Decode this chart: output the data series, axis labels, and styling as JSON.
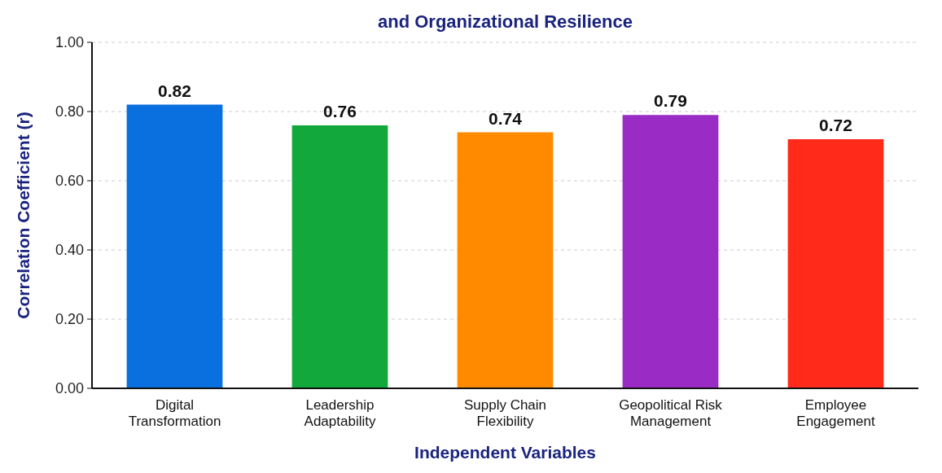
{
  "chart_data": {
    "type": "bar",
    "title": "and Organizational Resilience",
    "xlabel": "Independent Variables",
    "ylabel": "Correlation Coefficient (r)",
    "categories": [
      "Digital\nTransformation",
      "Leadership\nAdaptability",
      "Supply Chain\nFlexibility",
      "Geopolitical Risk\nManagement",
      "Employee\nEngagement"
    ],
    "values": [
      0.82,
      0.76,
      0.74,
      0.79,
      0.72
    ],
    "colors": [
      "#0a6fdf",
      "#12a83c",
      "#ff8a00",
      "#9a2bc4",
      "#ff2a1a"
    ],
    "data_labels": true,
    "ylim": [
      0,
      1
    ],
    "yticks": [
      {
        "value": 0,
        "label": "0.00"
      },
      {
        "value": 0.2,
        "label": "0.20"
      },
      {
        "value": 0.4,
        "label": "0.40"
      },
      {
        "value": 0.6,
        "label": "0.60"
      },
      {
        "value": 0.8,
        "label": "0.80"
      },
      {
        "value": 1,
        "label": "1.00"
      }
    ],
    "grid": "y"
  }
}
